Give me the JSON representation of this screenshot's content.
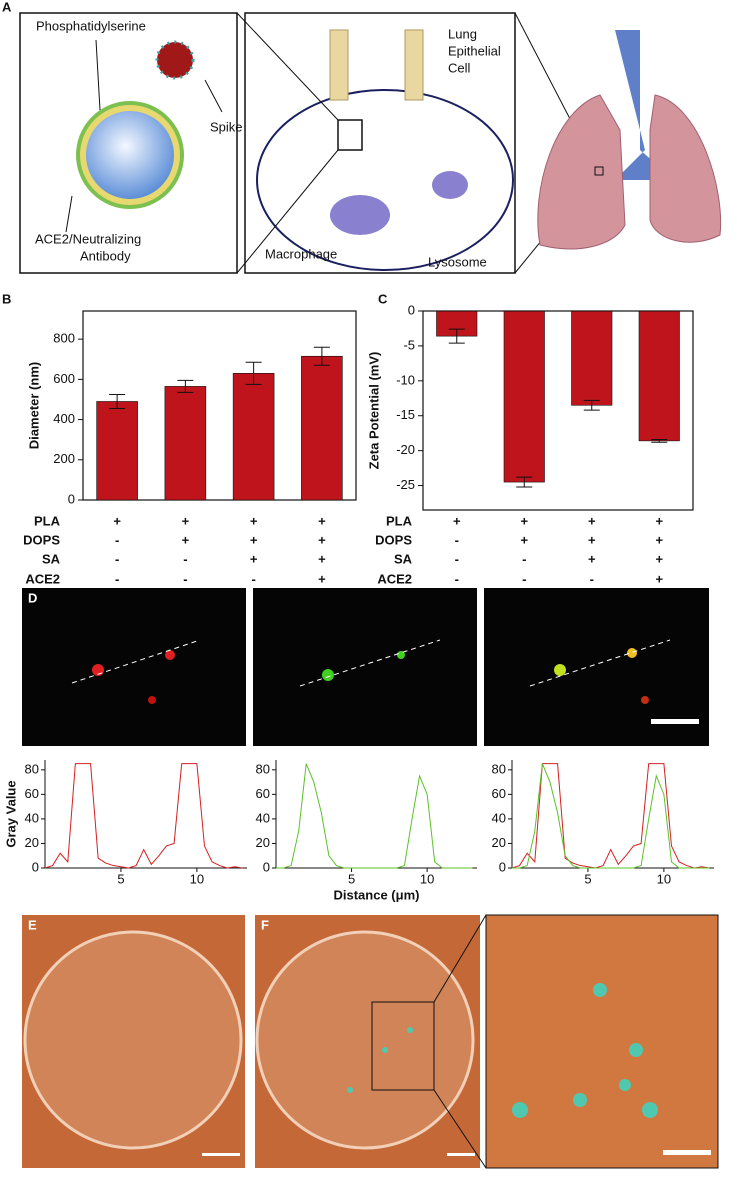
{
  "panel_labels": [
    "A",
    "B",
    "C",
    "D",
    "E",
    "F"
  ],
  "diagram_a": {
    "labels": [
      "Phosphatidylserine",
      "Spike",
      "ACE2/Neutralizing",
      "Antibody",
      "Lung",
      "Epithelial",
      "Cell",
      "Macrophage",
      "Lysosome"
    ]
  },
  "chart_data": [
    {
      "type": "bar",
      "ylabel": "Diameter (nm)",
      "color": "#c0141c",
      "values": [
        490,
        565,
        630,
        715
      ],
      "errors": [
        35,
        30,
        55,
        45
      ],
      "ylim": [
        0,
        940
      ],
      "yticks": [
        0,
        200,
        400,
        600,
        800
      ],
      "conditions": [
        {
          "name": "PLA",
          "signs": [
            "+",
            "+",
            "+",
            "+"
          ]
        },
        {
          "name": "DOPS",
          "signs": [
            "-",
            "+",
            "+",
            "+"
          ]
        },
        {
          "name": "SA",
          "signs": [
            "-",
            "-",
            "+",
            "+"
          ]
        },
        {
          "name": "ACE2",
          "signs": [
            "-",
            "-",
            "-",
            "+"
          ]
        }
      ]
    },
    {
      "type": "bar",
      "ylabel": "Zeta Potential (mV)",
      "color": "#c0141c",
      "values": [
        -3.6,
        -24.5,
        -13.5,
        -18.6
      ],
      "errors": [
        1.0,
        0.7,
        0.7,
        0.2
      ],
      "ylim": [
        -28.5,
        0
      ],
      "yticks": [
        0,
        -5,
        -10,
        -15,
        -20,
        -25
      ],
      "conditions": [
        {
          "name": "PLA",
          "signs": [
            "+",
            "+",
            "+",
            "+"
          ]
        },
        {
          "name": "DOPS",
          "signs": [
            "-",
            "+",
            "+",
            "+"
          ]
        },
        {
          "name": "SA",
          "signs": [
            "-",
            "-",
            "+",
            "+"
          ]
        },
        {
          "name": "ACE2",
          "signs": [
            "-",
            "-",
            "-",
            "+"
          ]
        }
      ]
    },
    {
      "type": "line",
      "ylabel": "Gray Value",
      "x": [
        0,
        0.5,
        1,
        1.5,
        2,
        2.5,
        3,
        3.5,
        4,
        4.5,
        5,
        5.5,
        6,
        6.5,
        7,
        7.5,
        8,
        8.5,
        9,
        9.5,
        10,
        10.5,
        11,
        11.5,
        12,
        12.5,
        13
      ],
      "series": [
        {
          "color": "#d42020",
          "values": [
            0,
            2,
            12,
            5,
            85,
            85,
            85,
            8,
            4,
            2,
            1,
            0,
            2,
            15,
            3,
            10,
            18,
            20,
            85,
            85,
            85,
            18,
            5,
            2,
            0,
            1,
            0
          ]
        }
      ],
      "xlim": [
        0,
        13.3
      ],
      "xticks": [
        5,
        10
      ],
      "ylim": [
        0,
        88
      ],
      "yticks": [
        0,
        20,
        40,
        60,
        80
      ]
    },
    {
      "type": "line",
      "xlabel": "Distance (μm)",
      "x": [
        0,
        0.5,
        1,
        1.5,
        2,
        2.5,
        3,
        3.5,
        4,
        4.5,
        5,
        5.5,
        6,
        6.5,
        7,
        7.5,
        8,
        8.5,
        9,
        9.5,
        10,
        10.5,
        11,
        11.5,
        12,
        12.5,
        13
      ],
      "series": [
        {
          "color": "#5cc02a",
          "values": [
            0,
            0,
            2,
            30,
            85,
            70,
            45,
            10,
            2,
            0,
            0,
            0,
            0,
            0,
            0,
            0,
            0,
            2,
            40,
            75,
            60,
            5,
            0,
            0,
            0,
            0,
            0
          ]
        }
      ],
      "xlim": [
        0,
        13.3
      ],
      "xticks": [
        5,
        10
      ],
      "ylim": [
        0,
        88
      ],
      "yticks": [
        0,
        20,
        40,
        60,
        80
      ]
    },
    {
      "type": "line",
      "x": [
        0,
        0.5,
        1,
        1.5,
        2,
        2.5,
        3,
        3.5,
        4,
        4.5,
        5,
        5.5,
        6,
        6.5,
        7,
        7.5,
        8,
        8.5,
        9,
        9.5,
        10,
        10.5,
        11,
        11.5,
        12,
        12.5,
        13
      ],
      "series": [
        {
          "color": "#d42020",
          "values": [
            0,
            2,
            12,
            5,
            85,
            85,
            85,
            8,
            4,
            2,
            1,
            0,
            2,
            15,
            3,
            10,
            18,
            20,
            85,
            85,
            85,
            18,
            5,
            2,
            0,
            1,
            0
          ]
        },
        {
          "color": "#5cc02a",
          "values": [
            0,
            0,
            2,
            30,
            85,
            70,
            45,
            10,
            2,
            0,
            0,
            0,
            0,
            0,
            0,
            0,
            0,
            2,
            40,
            75,
            60,
            5,
            0,
            0,
            0,
            0,
            0
          ]
        }
      ],
      "xlim": [
        0,
        13.3
      ],
      "xticks": [
        5,
        10
      ],
      "ylim": [
        0,
        88
      ],
      "yticks": [
        0,
        20,
        40,
        60,
        80
      ]
    }
  ]
}
